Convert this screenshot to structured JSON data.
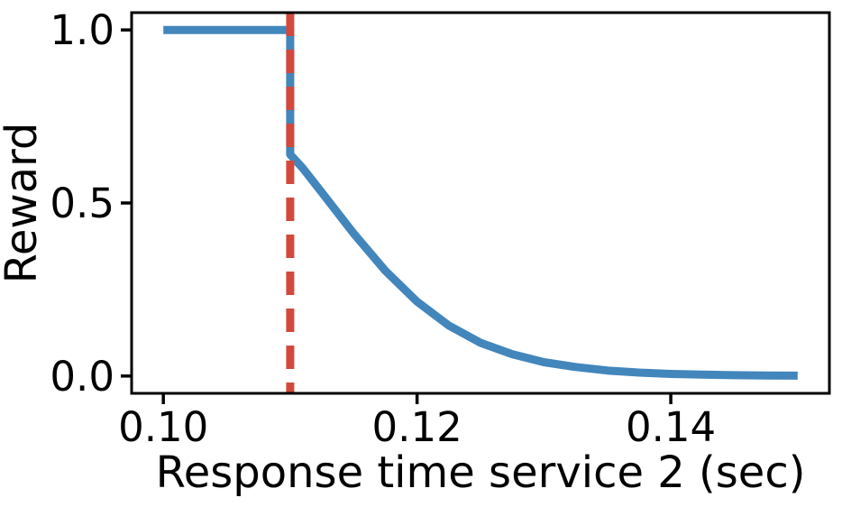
{
  "figure": {
    "background": "#ffffff"
  },
  "chart_data": {
    "type": "line",
    "title": "",
    "xlabel": "Response time service 2 (sec)",
    "ylabel": "Reward",
    "xlim": [
      0.0975,
      0.1525
    ],
    "ylim": [
      -0.05,
      1.05
    ],
    "x_ticks": [
      0.1,
      0.12,
      0.14
    ],
    "x_tick_labels": [
      "0.10",
      "0.12",
      "0.14"
    ],
    "y_ticks": [
      0.0,
      0.5,
      1.0
    ],
    "y_tick_labels": [
      "0.0",
      "0.5",
      "1.0"
    ],
    "grid": false,
    "legend": null,
    "axis_color": "#000000",
    "series": [
      {
        "name": "reward-vs-response-time",
        "type": "line",
        "color": "#4286BC",
        "line_style": "solid",
        "line_width": 9,
        "points": [
          [
            0.1,
            1.0
          ],
          [
            0.11,
            1.0
          ],
          [
            0.11,
            0.64
          ],
          [
            0.111,
            0.6
          ],
          [
            0.1125,
            0.53
          ],
          [
            0.115,
            0.412
          ],
          [
            0.1175,
            0.304
          ],
          [
            0.12,
            0.215
          ],
          [
            0.1225,
            0.146
          ],
          [
            0.125,
            0.096
          ],
          [
            0.1275,
            0.063
          ],
          [
            0.13,
            0.04
          ],
          [
            0.1325,
            0.026
          ],
          [
            0.135,
            0.016
          ],
          [
            0.1375,
            0.01
          ],
          [
            0.14,
            0.006
          ],
          [
            0.1425,
            0.004
          ],
          [
            0.145,
            0.0025
          ],
          [
            0.1475,
            0.0015
          ],
          [
            0.15,
            0.001
          ]
        ]
      },
      {
        "name": "deadline-threshold-vline",
        "type": "vline",
        "x": 0.11,
        "span": [
          -0.05,
          1.05
        ],
        "color": "#D2493C",
        "line_style": "dashed",
        "line_width": 9
      }
    ]
  }
}
